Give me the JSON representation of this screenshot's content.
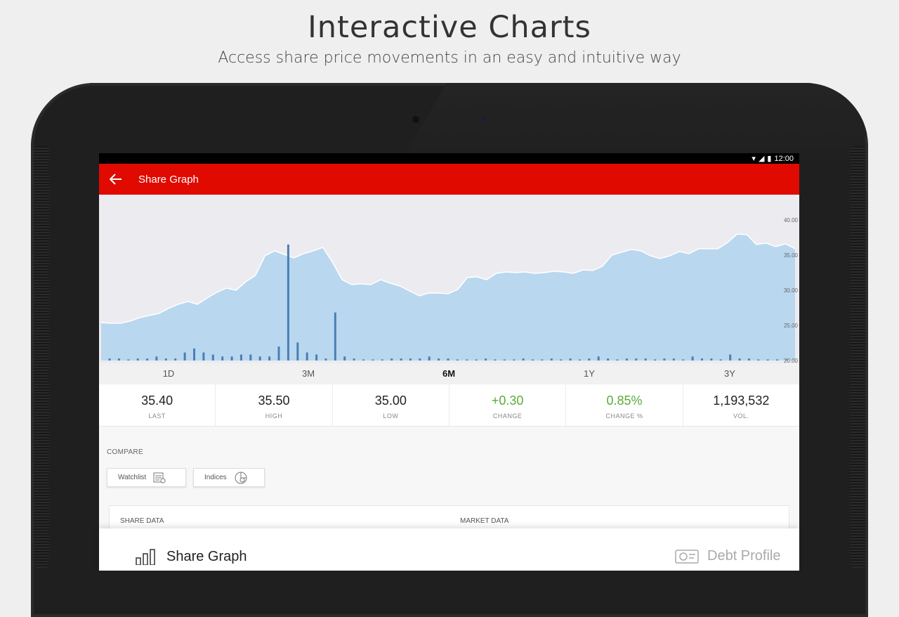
{
  "promo": {
    "title": "Interactive Charts",
    "subtitle": "Access share price movements in an easy and intuitive way"
  },
  "statusbar": {
    "time": "12:00"
  },
  "appbar": {
    "title": "Share Graph",
    "back_icon": "arrow-left-icon"
  },
  "chart_data": {
    "type": "area",
    "title": "",
    "y_ticks": [
      "40.00",
      "35.00",
      "30.00",
      "25.00",
      "20.00"
    ],
    "ylim": [
      20,
      40
    ],
    "price": [
      25.4,
      25.3,
      25.3,
      25.6,
      26.1,
      26.4,
      26.7,
      27.4,
      28.0,
      28.4,
      28.0,
      28.9,
      29.7,
      30.3,
      30.0,
      31.2,
      32.1,
      34.9,
      35.6,
      35.1,
      34.6,
      35.2,
      35.6,
      36.1,
      34.0,
      31.5,
      30.8,
      30.9,
      30.8,
      31.5,
      31.0,
      30.6,
      29.9,
      29.2,
      29.6,
      29.6,
      29.5,
      30.1,
      31.8,
      31.9,
      31.5,
      32.4,
      32.6,
      32.5,
      32.6,
      32.4,
      32.5,
      32.7,
      32.6,
      32.4,
      32.9,
      32.8,
      33.4,
      35.0,
      35.4,
      35.8,
      35.6,
      34.9,
      34.5,
      34.9,
      35.5,
      35.2,
      35.9,
      35.9,
      35.9,
      36.8,
      38.0,
      37.9,
      36.5,
      36.7,
      36.2,
      36.6,
      35.9
    ],
    "volume": [
      1,
      1,
      0,
      1,
      1,
      2,
      1,
      1,
      4,
      6,
      4,
      3,
      2,
      2,
      3,
      3,
      2,
      2,
      7,
      58,
      9,
      4,
      3,
      1,
      24,
      2,
      1,
      0,
      0,
      0,
      1,
      1,
      1,
      1,
      2,
      1,
      1,
      0,
      0,
      0,
      1,
      0,
      0,
      0,
      1,
      0,
      0,
      1,
      0,
      1,
      0,
      1,
      2,
      1,
      0,
      1,
      1,
      1,
      0,
      1,
      1,
      0,
      2,
      1,
      1,
      0,
      3,
      1,
      1,
      0,
      0,
      0,
      0
    ],
    "ranges": [
      "1D",
      "3M",
      "6M",
      "1Y",
      "3Y"
    ],
    "active_range": "6M"
  },
  "stats": [
    {
      "value": "35.40",
      "label": "LAST",
      "color": "default"
    },
    {
      "value": "35.50",
      "label": "HIGH",
      "color": "default"
    },
    {
      "value": "35.00",
      "label": "LOW",
      "color": "default"
    },
    {
      "value": "+0.30",
      "label": "CHANGE",
      "color": "green"
    },
    {
      "value": "0.85%",
      "label": "CHANGE %",
      "color": "green"
    },
    {
      "value": "1,193,532",
      "label": "VOL.",
      "color": "default"
    }
  ],
  "compare": {
    "label": "COMPARE",
    "watchlist": "Watchlist",
    "indices": "Indices"
  },
  "data_card": {
    "share_data": "SHARE DATA",
    "market_data": "MARKET DATA"
  },
  "bottom_sheet": {
    "share_graph": "Share Graph",
    "debt_profile": "Debt Profile"
  }
}
